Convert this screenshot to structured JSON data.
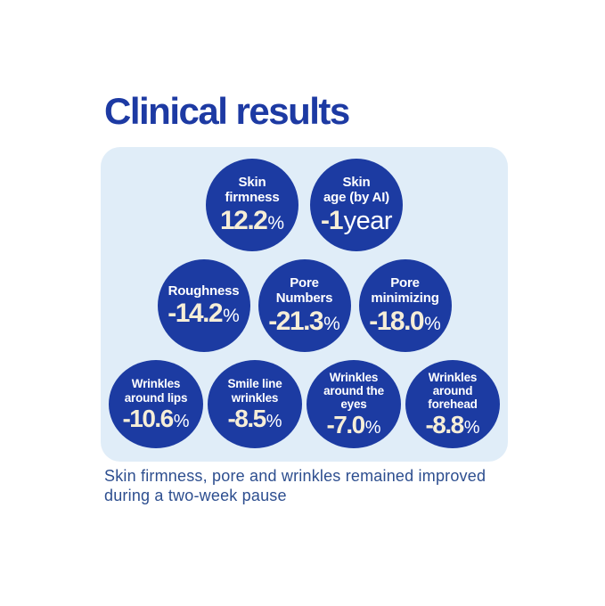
{
  "title": "Clinical results",
  "caption": "Skin firmness, pore and wrinkles remained improved\nduring a two-week pause",
  "colors": {
    "background": "#ffffff",
    "title_blue": "#1d3aa3",
    "panel_light_blue": "#e0edf8",
    "bubble_blue": "#1c3ba2",
    "label_white": "#ffffff",
    "number_cream": "#f6eed7",
    "caption_navy": "#2d4e8f"
  },
  "rows": [
    {
      "bubbles": [
        {
          "label": "Skin\nfirmness",
          "value": "12.2",
          "unit": "%"
        },
        {
          "label": "Skin\nage (by AI)",
          "value": "-1",
          "unit": "year"
        }
      ]
    },
    {
      "bubbles": [
        {
          "label": "Roughness",
          "value": "-14.2",
          "unit": "%"
        },
        {
          "label": "Pore\nNumbers",
          "value": "-21.3",
          "unit": "%"
        },
        {
          "label": "Pore\nminimizing",
          "value": "-18.0",
          "unit": "%"
        }
      ]
    },
    {
      "bubbles": [
        {
          "label": "Wrinkles\naround lips",
          "value": "-10.6",
          "unit": "%"
        },
        {
          "label": "Smile line\nwrinkles",
          "value": "-8.5",
          "unit": "%"
        },
        {
          "label": "Wrinkles\naround the\neyes",
          "value": "-7.0",
          "unit": "%"
        },
        {
          "label": "Wrinkles\naround\nforehead",
          "value": "-8.8",
          "unit": "%"
        }
      ]
    }
  ],
  "chart_data": {
    "type": "table",
    "title": "Clinical results",
    "categories": [
      "Skin firmness",
      "Skin age (by AI)",
      "Roughness",
      "Pore Numbers",
      "Pore minimizing",
      "Wrinkles around lips",
      "Smile line wrinkles",
      "Wrinkles around the eyes",
      "Wrinkles around forehead"
    ],
    "values": [
      12.2,
      -1,
      -14.2,
      -21.3,
      -18.0,
      -10.6,
      -8.5,
      -7.0,
      -8.8
    ],
    "units": [
      "%",
      "year",
      "%",
      "%",
      "%",
      "%",
      "%",
      "%",
      "%"
    ],
    "annotations": [
      "Skin firmness, pore and wrinkles remained improved during a two-week pause"
    ],
    "layout": "blue stat bubbles arranged in rows of 2, 3 and 4 on a light-blue rounded panel"
  }
}
